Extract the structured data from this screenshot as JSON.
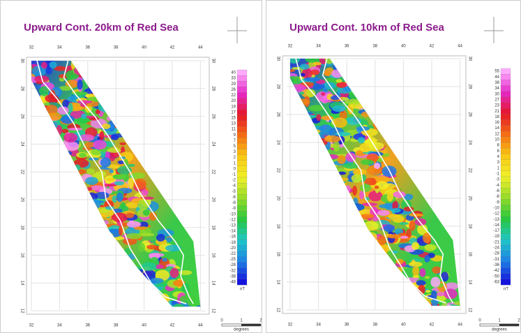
{
  "panels": [
    {
      "title": "Upward Cont. 20km of Red Sea",
      "x_ticks": [
        32,
        34,
        36,
        38,
        40,
        42,
        44
      ],
      "y_ticks": [
        12,
        14,
        16,
        18,
        20,
        22,
        24,
        26,
        28,
        30
      ],
      "colorbar_labels": [
        40,
        33,
        29,
        26,
        22,
        20,
        19,
        17,
        15,
        13,
        11,
        9,
        7,
        5,
        3,
        2,
        1,
        0,
        -1,
        -2,
        -4,
        -5,
        -6,
        -8,
        -9,
        -10,
        -12,
        -13,
        -14,
        -16,
        -18,
        -20,
        -22,
        -25,
        -28,
        -32,
        -38,
        -48
      ],
      "unit": "nT",
      "scale_labels": [
        0,
        1,
        2
      ],
      "scale_unit": "degrees"
    },
    {
      "title": "Upward Cont. 10km of Red Sea",
      "x_ticks": [
        32,
        34,
        36,
        38,
        40,
        42,
        44
      ],
      "y_ticks": [
        12,
        14,
        16,
        18,
        20,
        22,
        24,
        26,
        28,
        30
      ],
      "colorbar_labels": [
        55,
        44,
        38,
        34,
        30,
        27,
        23,
        21,
        18,
        16,
        14,
        12,
        10,
        8,
        6,
        4,
        3,
        1,
        -1,
        -3,
        -4,
        -6,
        -8,
        -9,
        -10,
        -12,
        -13,
        -14,
        -17,
        -19,
        -21,
        -24,
        -28,
        -31,
        -36,
        -42,
        -50,
        -63
      ],
      "unit": "nT",
      "scale_labels": [
        0,
        1,
        2
      ],
      "scale_unit": "degrees"
    }
  ]
}
